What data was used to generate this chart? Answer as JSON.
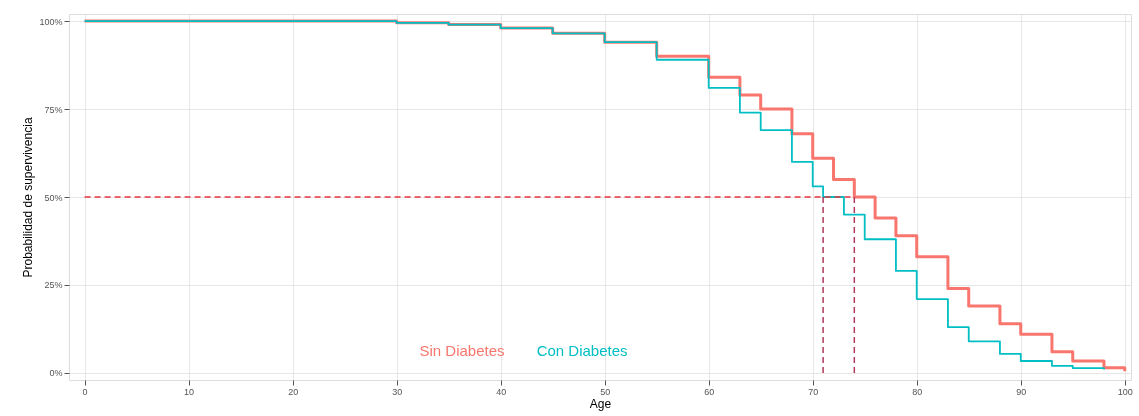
{
  "chart_data": {
    "type": "step",
    "xlabel": "Age",
    "ylabel": "Probabilidad de supervivencia",
    "xlim": [
      -1.5,
      100.6
    ],
    "xticks": [
      0,
      10,
      20,
      30,
      40,
      50,
      60,
      70,
      80,
      90,
      100
    ],
    "ylim": [
      -2,
      102
    ],
    "yticks": [
      {
        "value": 0,
        "label": "0%"
      },
      {
        "value": 25,
        "label": "25%"
      },
      {
        "value": 50,
        "label": "50%"
      },
      {
        "value": 75,
        "label": "75%"
      },
      {
        "value": 100,
        "label": "100%"
      }
    ],
    "grid": true,
    "legend": "bottom",
    "series": [
      {
        "name": "Sin Diabetes",
        "color": "#f8766d",
        "x": [
          0,
          20,
          30,
          35,
          40,
          45,
          50,
          55,
          60,
          63,
          65,
          68,
          70,
          72,
          74,
          76,
          78,
          80,
          83,
          85,
          88,
          90,
          93,
          95,
          98,
          100
        ],
        "values": [
          100,
          100,
          99.5,
          99,
          98,
          96.5,
          94,
          90,
          84,
          79,
          75,
          68,
          61,
          55,
          50,
          44,
          39,
          33,
          24,
          19,
          14,
          11,
          6,
          3.4,
          1.5,
          0.5
        ]
      },
      {
        "name": "Con Diabetes",
        "color": "#00bfc4",
        "x": [
          0,
          20,
          30,
          35,
          40,
          45,
          50,
          55,
          60,
          63,
          65,
          68,
          70,
          71,
          73,
          75,
          78,
          80,
          83,
          85,
          88,
          90,
          93,
          95,
          98
        ],
        "values": [
          100,
          100,
          99.5,
          99,
          98,
          96.5,
          94,
          89,
          81,
          74,
          69,
          60,
          53,
          50,
          45,
          38,
          29,
          21,
          13,
          9,
          5.4,
          3.4,
          2,
          1.4,
          1
        ]
      }
    ],
    "ref_lines": [
      {
        "axis": "y",
        "value": 50,
        "color": "#e8333f",
        "line_style": "dashed"
      },
      {
        "axis": "x",
        "value": 71,
        "color": "#b03a5a",
        "line_style": "dashed"
      },
      {
        "axis": "x",
        "value": 74,
        "color": "#b03a5a",
        "line_style": "dashed"
      }
    ]
  }
}
